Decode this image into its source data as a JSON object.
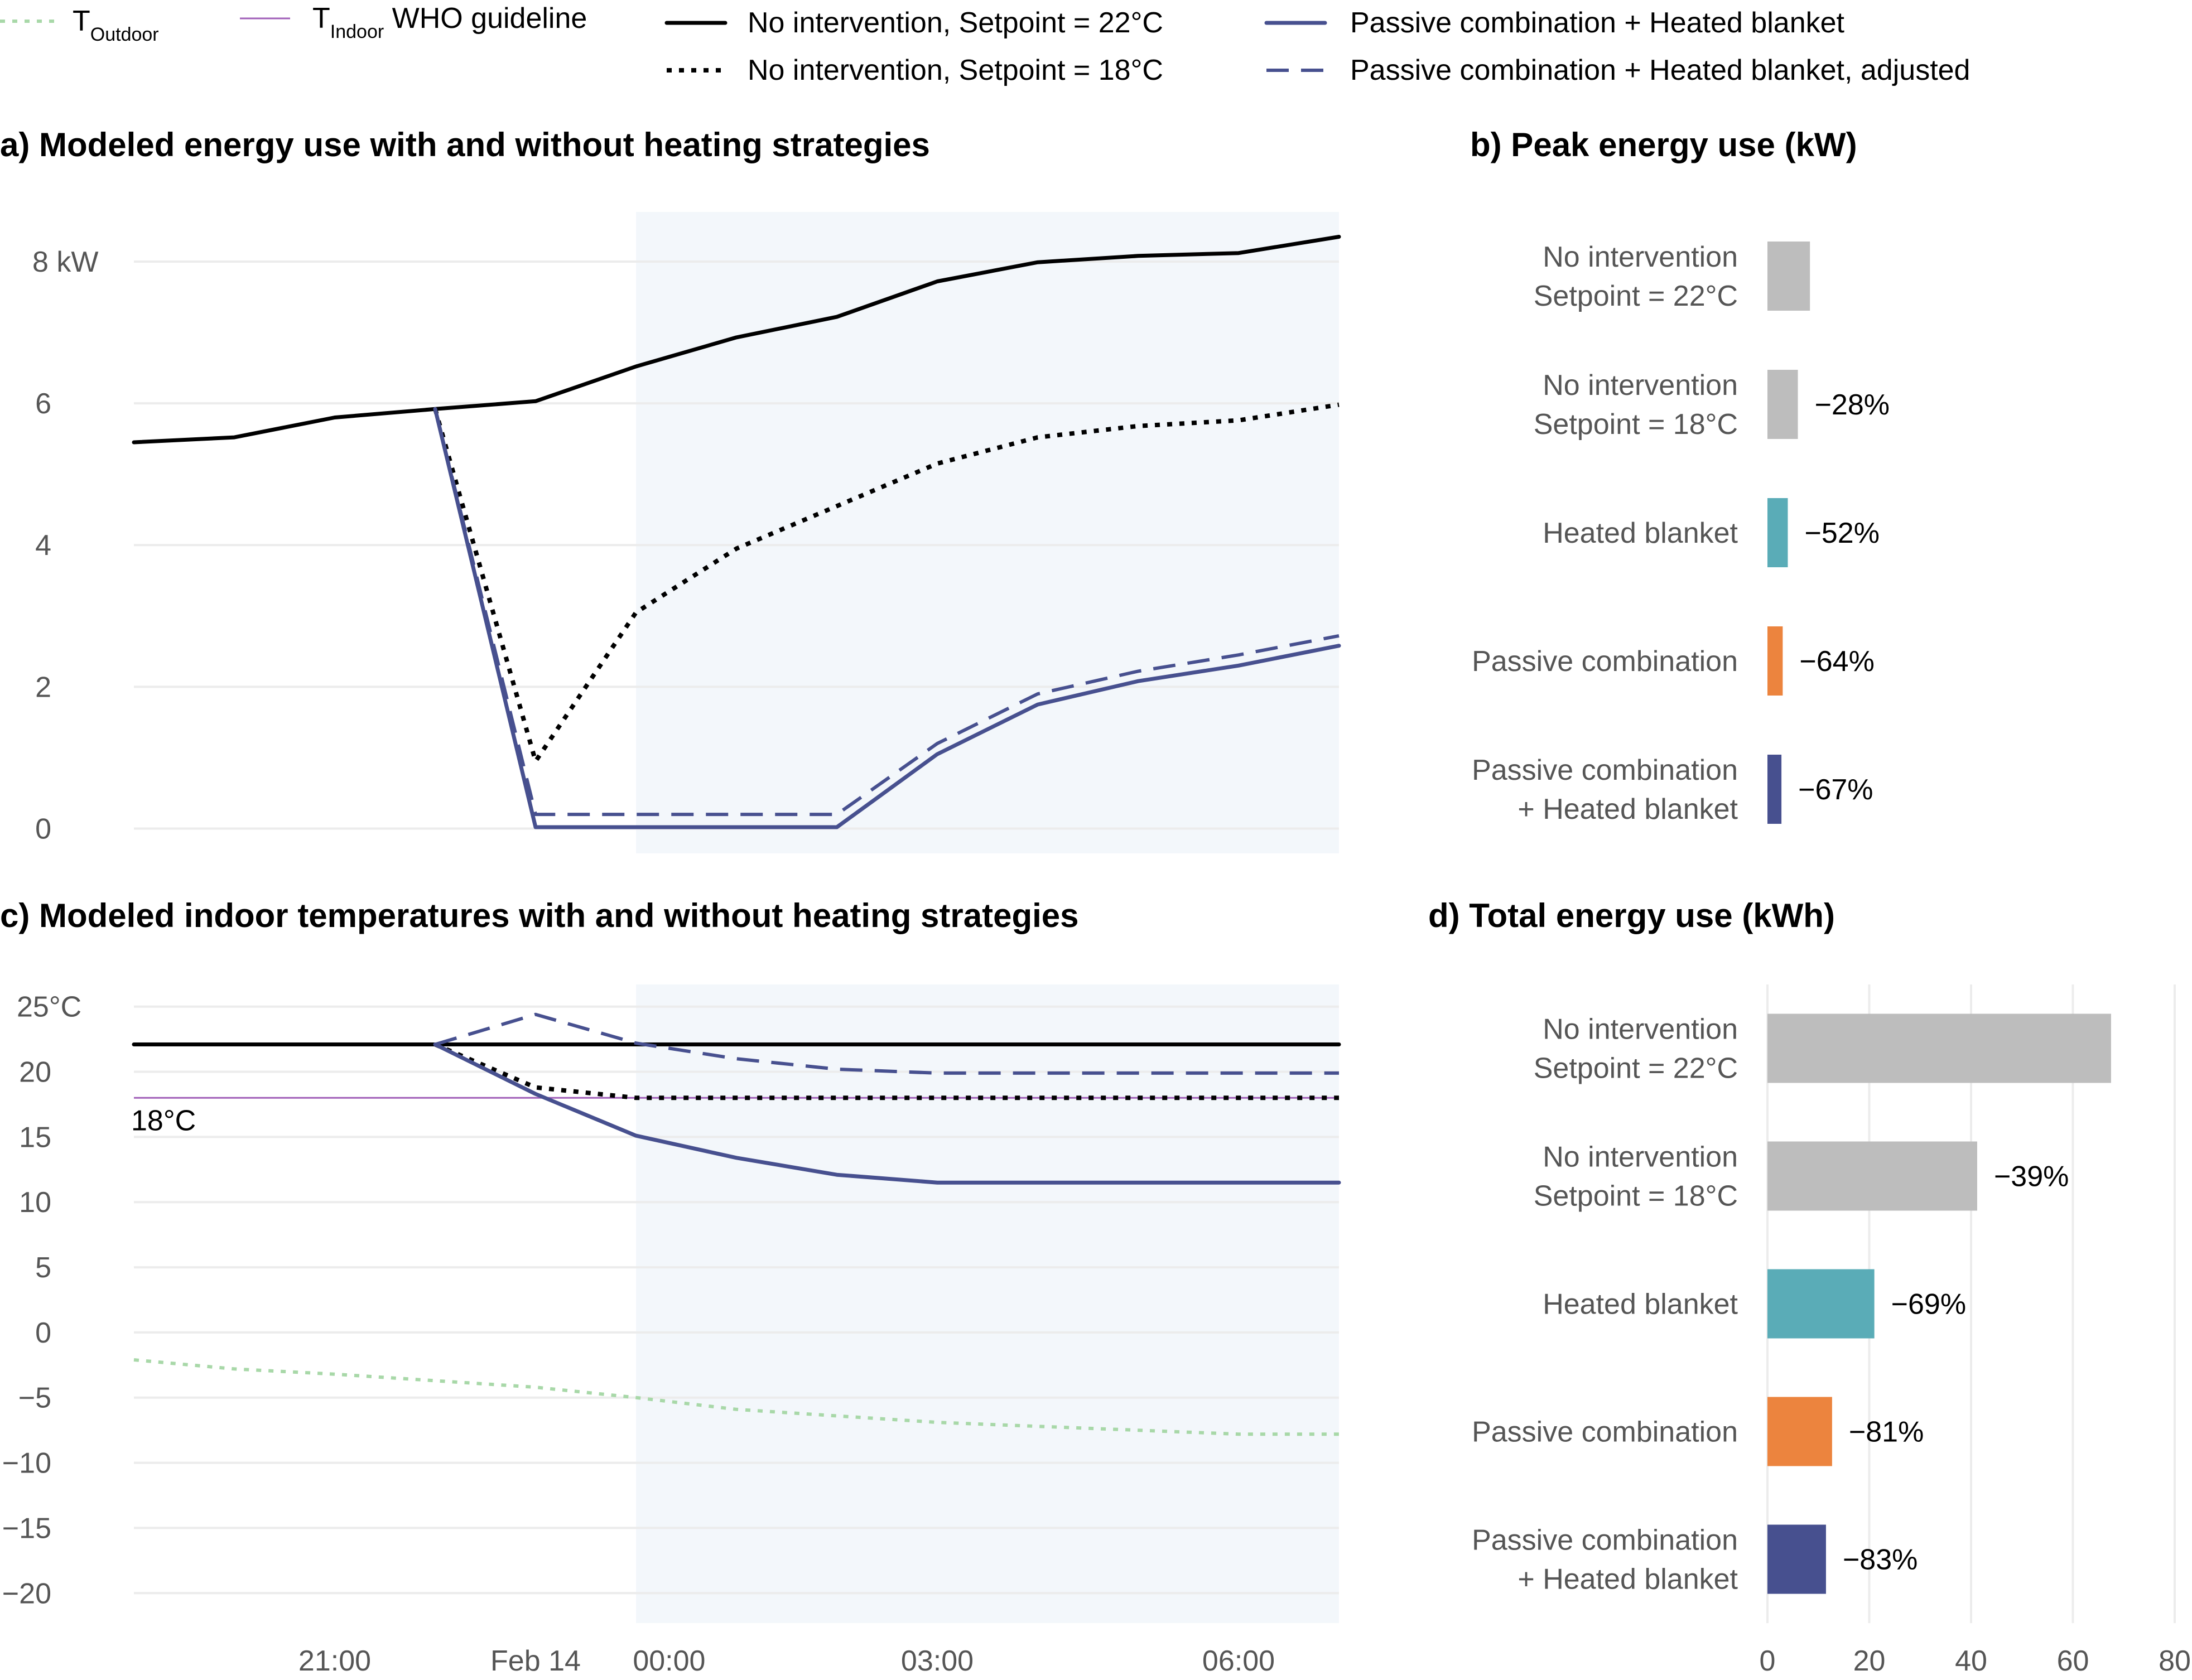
{
  "legend": {
    "items": [
      {
        "key": "outdoor",
        "prefix": "T",
        "sub": "Outdoor",
        "suffix": "",
        "color": "#a8d8a8",
        "style": "dotted"
      },
      {
        "key": "who",
        "prefix": "T",
        "sub": "Indoor",
        "suffix": " WHO guideline",
        "color": "#a05fb8",
        "style": "thin"
      },
      {
        "key": "nh22",
        "label": "No intervention, Setpoint = 22°C",
        "color": "#000000",
        "style": "solid"
      },
      {
        "key": "nh18",
        "label": "No intervention, Setpoint = 18°C",
        "color": "#000000",
        "style": "dotted"
      },
      {
        "key": "pchb",
        "label": "Passive combination + Heated blanket",
        "color": "#47508f",
        "style": "solid"
      },
      {
        "key": "pchb_adj",
        "label": "Passive combination + Heated blanket, adjusted",
        "color": "#47508f",
        "style": "dashed"
      }
    ]
  },
  "colors": {
    "night_shade": "#f3f7fb",
    "grid": "#ececec",
    "navy": "#47508f",
    "gray_bar": "#bdbdbd",
    "teal": "#5aacb7",
    "orange": "#ec843e",
    "outdoor": "#a8d8a8",
    "who": "#a05fb8"
  },
  "chart_data": [
    {
      "panel": "a",
      "type": "line",
      "title": "a) Modeled energy use with and without heating strategies",
      "unit_label": "8 kW",
      "y_ticks": [
        "0",
        "2",
        "4",
        "6"
      ],
      "y_tick_values": [
        0,
        2,
        4,
        6
      ],
      "ylim": [
        -0.35,
        8.7
      ],
      "xlim": [
        0,
        12
      ],
      "shaded_x_range": [
        5,
        12
      ],
      "x_tick_labels": [
        "21:00",
        "Feb 14",
        "00:00",
        "03:00",
        "06:00"
      ],
      "x_tick_values": [
        2,
        4,
        5.33,
        8,
        11
      ],
      "x": [
        0,
        1,
        2,
        3,
        4,
        5,
        6,
        7,
        8,
        9,
        10,
        11,
        12
      ],
      "series": [
        {
          "key": "nh22",
          "values": [
            5.45,
            5.52,
            5.8,
            5.92,
            6.03,
            6.52,
            6.93,
            7.22,
            7.72,
            7.99,
            8.08,
            8.12,
            8.35
          ]
        },
        {
          "key": "nh18",
          "values": [
            null,
            null,
            null,
            5.92,
            0.95,
            3.05,
            3.95,
            4.55,
            5.15,
            5.52,
            5.68,
            5.76,
            5.98
          ]
        },
        {
          "key": "pchb",
          "values": [
            null,
            null,
            null,
            5.92,
            0.02,
            0.02,
            0.02,
            0.02,
            1.05,
            1.75,
            2.08,
            2.3,
            2.58
          ]
        },
        {
          "key": "pchb_adj",
          "values": [
            null,
            null,
            null,
            5.92,
            0.2,
            0.2,
            0.2,
            0.2,
            1.2,
            1.9,
            2.22,
            2.45,
            2.72
          ]
        }
      ]
    },
    {
      "panel": "b",
      "type": "bar",
      "title": "b) Peak energy use (kW)",
      "xlim": [
        0,
        80
      ],
      "categories": [
        [
          "No intervention",
          "Setpoint = 22°C"
        ],
        [
          "No intervention",
          "Setpoint = 18°C"
        ],
        [
          "Heated blanket"
        ],
        [
          "Passive combination"
        ],
        [
          "Passive combination",
          "+ Heated blanket"
        ]
      ],
      "values": [
        8.35,
        5.98,
        4.0,
        3.0,
        2.75
      ],
      "labels": [
        "",
        "−28%",
        "−52%",
        "−64%",
        "−67%"
      ],
      "bar_colors": [
        "#bdbdbd",
        "#bdbdbd",
        "#5aacb7",
        "#ec843e",
        "#47508f"
      ]
    },
    {
      "panel": "c",
      "type": "line",
      "title": "c) Modeled indoor temperatures with and without heating strategies",
      "unit_label": "25°C",
      "y_ticks": [
        "20",
        "15",
        "10",
        "5",
        "0",
        "−5",
        "−10",
        "−15",
        "−20"
      ],
      "y_tick_values": [
        20,
        15,
        10,
        5,
        0,
        -5,
        -10,
        -15,
        -20
      ],
      "ylim": [
        -22.3,
        26.7
      ],
      "xlim": [
        0,
        12
      ],
      "shaded_x_range": [
        5,
        12
      ],
      "x_tick_labels": [
        "21:00",
        "Feb 14",
        "00:00",
        "03:00",
        "06:00"
      ],
      "x_tick_values": [
        2,
        4,
        5.33,
        8,
        11
      ],
      "who_guideline": 18,
      "who_label": "18°C",
      "x": [
        0,
        1,
        2,
        3,
        4,
        5,
        6,
        7,
        8,
        9,
        10,
        11,
        12
      ],
      "series": [
        {
          "key": "nh22",
          "values": [
            22.1,
            22.1,
            22.1,
            22.1,
            22.1,
            22.1,
            22.1,
            22.1,
            22.1,
            22.1,
            22.1,
            22.1,
            22.1
          ]
        },
        {
          "key": "nh18",
          "values": [
            null,
            null,
            null,
            22.1,
            18.8,
            18.0,
            18.0,
            18.0,
            18.0,
            18.0,
            18.0,
            18.0,
            18.0
          ]
        },
        {
          "key": "pchb",
          "values": [
            null,
            null,
            null,
            22.1,
            18.3,
            15.1,
            13.4,
            12.1,
            11.5,
            11.5,
            11.5,
            11.5,
            11.5
          ]
        },
        {
          "key": "pchb_adj",
          "values": [
            null,
            null,
            null,
            22.1,
            24.4,
            22.2,
            21.0,
            20.2,
            19.9,
            19.9,
            19.9,
            19.9,
            19.9
          ]
        },
        {
          "key": "outdoor",
          "values": [
            -2.1,
            -2.8,
            -3.2,
            -3.7,
            -4.2,
            -5.0,
            -5.9,
            -6.4,
            -6.9,
            -7.2,
            -7.5,
            -7.8,
            -7.8
          ]
        }
      ]
    },
    {
      "panel": "d",
      "type": "bar",
      "title": "d) Total energy use (kWh)",
      "xlim": [
        0,
        80
      ],
      "x_ticks": [
        "0",
        "20",
        "40",
        "60",
        "80"
      ],
      "x_tick_values": [
        0,
        20,
        40,
        60,
        80
      ],
      "categories": [
        [
          "No intervention",
          "Setpoint = 22°C"
        ],
        [
          "No intervention",
          "Setpoint = 18°C"
        ],
        [
          "Heated blanket"
        ],
        [
          "Passive combination"
        ],
        [
          "Passive combination",
          "+ Heated blanket"
        ]
      ],
      "values": [
        67.5,
        41.2,
        21.0,
        12.7,
        11.5
      ],
      "labels": [
        "",
        "−39%",
        "−69%",
        "−81%",
        "−83%"
      ],
      "bar_colors": [
        "#bdbdbd",
        "#bdbdbd",
        "#5aacb7",
        "#ec843e",
        "#47508f"
      ]
    }
  ]
}
